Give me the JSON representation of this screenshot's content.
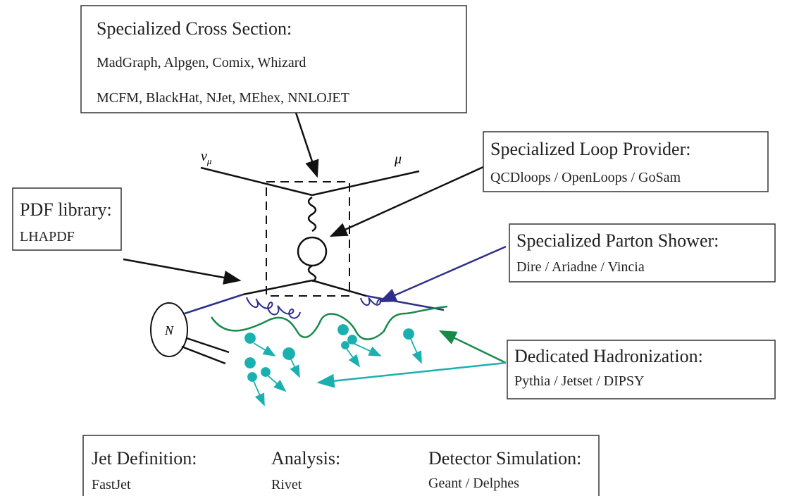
{
  "cross_section": {
    "title": "Specialized Cross Section:",
    "lines": [
      "MadGraph, Alpgen, Comix, Whizard",
      "MCFM, BlackHat, NJet, MEhex, NNLOJET"
    ]
  },
  "loop_provider": {
    "title": "Specialized Loop Provider:",
    "lines": [
      "QCDloops / OpenLoops / GoSam"
    ]
  },
  "pdf": {
    "title": "PDF library:",
    "lines": [
      "LHAPDF"
    ]
  },
  "parton_shower": {
    "title": "Specialized Parton Shower:",
    "lines": [
      "Dire / Ariadne / Vincia"
    ]
  },
  "hadronization": {
    "title": "Dedicated Hadronization:",
    "lines": [
      "Pythia / Jetset / DIPSY"
    ]
  },
  "analysis_tools": [
    {
      "title": "Jet Definition:",
      "tool": "FastJet"
    },
    {
      "title": "Analysis:",
      "tool": "Rivet"
    },
    {
      "title": "Detector Simulation:",
      "tool": "Geant / Delphes"
    }
  ],
  "labels": {
    "neutrino": "ν",
    "neutrino_sub": "μ",
    "muon": "μ",
    "nucleon": "N"
  }
}
